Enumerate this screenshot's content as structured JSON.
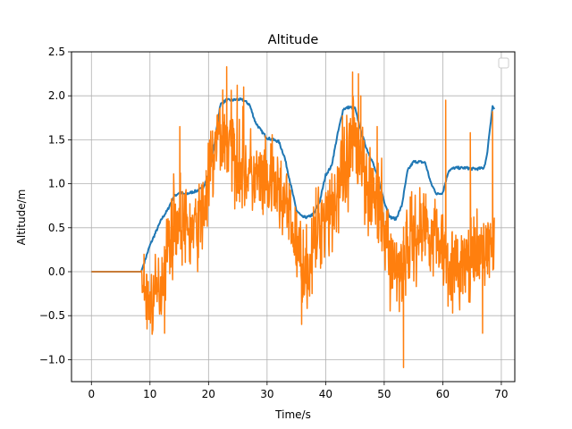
{
  "chart_data": {
    "type": "line",
    "title": "Altitude",
    "xlabel": "Time/s",
    "ylabel": "Altitude/m",
    "xlim": [
      -3.4,
      72.3
    ],
    "ylim": [
      -1.25,
      2.5
    ],
    "xticks": [
      0,
      10,
      20,
      30,
      40,
      50,
      60,
      70
    ],
    "yticks": [
      -1.0,
      -0.5,
      0.0,
      0.5,
      1.0,
      1.5,
      2.0,
      2.5
    ],
    "ytick_labels": [
      "−1.0",
      "−0.5",
      "0.0",
      "0.5",
      "1.0",
      "1.5",
      "2.0",
      "2.5"
    ],
    "grid": true,
    "legend": {
      "placement": "top-right",
      "entries": []
    },
    "series": [
      {
        "color": "#1f77b4",
        "style": "smooth",
        "x": [
          0,
          8.5,
          9,
          10,
          11,
          12,
          13,
          14,
          15,
          16,
          17,
          18,
          19,
          20,
          21,
          22,
          23,
          24,
          25,
          26,
          27,
          28,
          29,
          30,
          31,
          32,
          33,
          34,
          35,
          36,
          37,
          38,
          39,
          40,
          41,
          42,
          43,
          44,
          45,
          46,
          47,
          48,
          49,
          50,
          51,
          52,
          53,
          54,
          55,
          56,
          57,
          58,
          59,
          60,
          61,
          62,
          63,
          64,
          65,
          66,
          67,
          67.5,
          68,
          68.5,
          68.8
        ],
        "y": [
          0,
          0,
          0.1,
          0.3,
          0.45,
          0.6,
          0.7,
          0.85,
          0.9,
          0.88,
          0.9,
          0.92,
          0.95,
          1.1,
          1.45,
          1.9,
          1.95,
          1.95,
          1.96,
          1.95,
          1.9,
          1.7,
          1.6,
          1.52,
          1.5,
          1.48,
          1.3,
          1.0,
          0.7,
          0.62,
          0.62,
          0.66,
          0.8,
          1.1,
          1.2,
          1.55,
          1.85,
          1.87,
          1.86,
          1.6,
          1.4,
          1.25,
          1.05,
          0.8,
          0.62,
          0.6,
          0.75,
          1.15,
          1.25,
          1.25,
          1.24,
          1.0,
          0.88,
          0.9,
          1.15,
          1.18,
          1.18,
          1.18,
          1.17,
          1.17,
          1.18,
          1.3,
          1.6,
          1.88,
          1.85
        ]
      },
      {
        "color": "#ff7f0e",
        "style": "noisy",
        "base_x": [
          0,
          8.5,
          9,
          10,
          11,
          12,
          13,
          14,
          15,
          16,
          17,
          18,
          19,
          20,
          21,
          22,
          23,
          24,
          25,
          26,
          27,
          28,
          29,
          30,
          31,
          32,
          33,
          34,
          35,
          36,
          37,
          38,
          39,
          40,
          41,
          42,
          43,
          44,
          45,
          46,
          47,
          48,
          49,
          50,
          51,
          52,
          53,
          54,
          55,
          56,
          57,
          58,
          59,
          60,
          61,
          62,
          63,
          64,
          65,
          66,
          67,
          68,
          68.8
        ],
        "base_y": [
          0,
          0,
          -0.2,
          -0.35,
          -0.3,
          -0.1,
          0.3,
          0.55,
          0.6,
          0.5,
          0.45,
          0.5,
          0.65,
          1.0,
          1.35,
          1.6,
          1.5,
          1.4,
          1.3,
          1.2,
          1.1,
          1.05,
          1.0,
          0.95,
          1.0,
          0.9,
          0.8,
          0.55,
          0.3,
          0.1,
          0.0,
          0.3,
          0.55,
          0.7,
          0.75,
          0.9,
          1.0,
          1.2,
          1.5,
          1.35,
          1.1,
          0.9,
          0.7,
          0.5,
          0.15,
          0.0,
          0.1,
          0.3,
          0.4,
          0.45,
          0.55,
          0.45,
          0.4,
          0.3,
          0.15,
          0.0,
          0.05,
          0.1,
          0.1,
          0.15,
          0.25,
          0.3,
          0.3
        ],
        "spread": [
          0,
          0,
          0.55,
          0.55,
          0.6,
          0.6,
          0.6,
          0.65,
          0.65,
          0.6,
          0.6,
          0.6,
          0.65,
          0.7,
          0.7,
          0.75,
          0.75,
          0.75,
          0.7,
          0.7,
          0.7,
          0.65,
          0.65,
          0.65,
          0.65,
          0.6,
          0.6,
          0.6,
          0.6,
          0.6,
          0.6,
          0.65,
          0.7,
          0.7,
          0.75,
          0.8,
          0.85,
          0.85,
          0.9,
          0.85,
          0.8,
          0.75,
          0.7,
          0.7,
          0.7,
          0.7,
          0.75,
          0.7,
          0.7,
          0.7,
          0.7,
          0.65,
          0.65,
          0.65,
          0.65,
          0.6,
          0.6,
          0.6,
          0.6,
          0.6,
          0.6,
          0.55,
          0.55
        ],
        "peaks": [
          {
            "x": 9.5,
            "y": -0.65
          },
          {
            "x": 12.5,
            "y": -0.7
          },
          {
            "x": 15.1,
            "y": 1.65
          },
          {
            "x": 23.1,
            "y": 2.33
          },
          {
            "x": 24.9,
            "y": 2.12
          },
          {
            "x": 26.0,
            "y": 2.1
          },
          {
            "x": 35.9,
            "y": -0.6
          },
          {
            "x": 44.6,
            "y": 2.27
          },
          {
            "x": 45.6,
            "y": 2.25
          },
          {
            "x": 46.0,
            "y": 2.0
          },
          {
            "x": 48.8,
            "y": 1.65
          },
          {
            "x": 53.3,
            "y": -1.09
          },
          {
            "x": 60.5,
            "y": 1.95
          },
          {
            "x": 64.7,
            "y": 1.58
          },
          {
            "x": 66.8,
            "y": -0.7
          },
          {
            "x": 68.5,
            "y": 1.82
          }
        ]
      }
    ]
  }
}
